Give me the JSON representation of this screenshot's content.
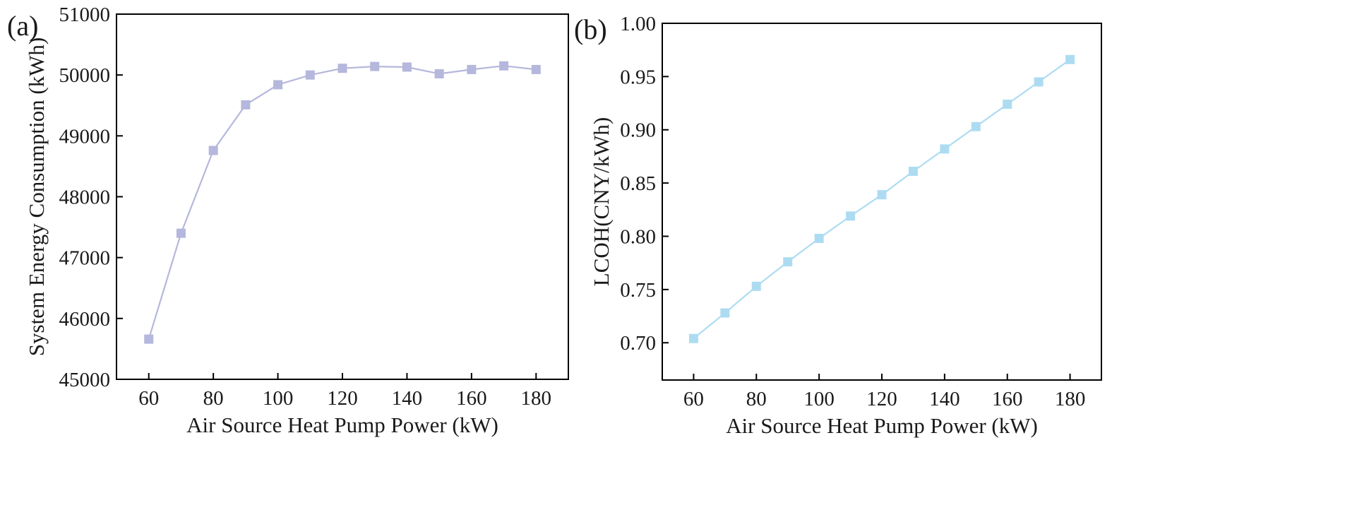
{
  "chart_data": [
    {
      "panel_label": "(a)",
      "type": "line",
      "xlabel": "Air Source Heat Pump Power (kW)",
      "ylabel": "System Energy Consumption (kWh)",
      "xlim": [
        50,
        190
      ],
      "ylim": [
        45000,
        51000
      ],
      "xticks": [
        60,
        80,
        100,
        120,
        140,
        160,
        180
      ],
      "yticks": [
        45000,
        46000,
        47000,
        48000,
        49000,
        50000,
        51000
      ],
      "ytick_decimals": 0,
      "grid": false,
      "color": "#b5b7dc",
      "marker": "square",
      "x": [
        60,
        70,
        80,
        90,
        100,
        110,
        120,
        130,
        140,
        150,
        160,
        170,
        180
      ],
      "y": [
        45660,
        47400,
        48760,
        49510,
        49840,
        50000,
        50110,
        50140,
        50130,
        50020,
        50090,
        50150,
        50090
      ]
    },
    {
      "panel_label": "(b)",
      "type": "line",
      "xlabel": "Air Source Heat Pump Power (kW)",
      "ylabel": "LCOH(CNY/kWh)",
      "xlim": [
        50,
        190
      ],
      "ylim": [
        0.665,
        1.0
      ],
      "xticks": [
        60,
        80,
        100,
        120,
        140,
        160,
        180
      ],
      "yticks": [
        0.7,
        0.75,
        0.8,
        0.85,
        0.9,
        0.95,
        1.0
      ],
      "ytick_decimals": 2,
      "grid": false,
      "color": "#addcf2",
      "marker": "square",
      "x": [
        60,
        70,
        80,
        90,
        100,
        110,
        120,
        130,
        140,
        150,
        160,
        170,
        180
      ],
      "y": [
        0.704,
        0.728,
        0.753,
        0.776,
        0.798,
        0.819,
        0.839,
        0.861,
        0.882,
        0.903,
        0.924,
        0.945,
        0.966
      ]
    }
  ]
}
